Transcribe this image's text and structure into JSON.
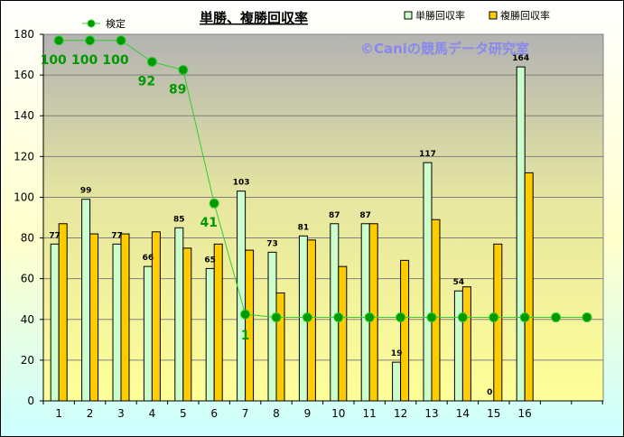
{
  "chart_data": {
    "type": "bar",
    "title": "単勝、複勝回収率",
    "watermark": "©Caniの競馬データ研究室",
    "categories": [
      "1",
      "2",
      "3",
      "4",
      "5",
      "6",
      "7",
      "8",
      "9",
      "10",
      "11",
      "12",
      "13",
      "14",
      "15",
      "16"
    ],
    "series": [
      {
        "name": "単勝回収率",
        "type": "bar",
        "color": "#ccffcc",
        "values": [
          77,
          99,
          77,
          66,
          85,
          65,
          103,
          73,
          81,
          87,
          87,
          19,
          117,
          54,
          0,
          164
        ],
        "labels": [
          "77",
          "99",
          "77",
          "66",
          "85",
          "65",
          "103",
          "73",
          "81",
          "87",
          "87",
          "19",
          "117",
          "54",
          "0",
          "164"
        ]
      },
      {
        "name": "複勝回収率",
        "type": "bar",
        "color": "#ffcc00",
        "values": [
          87,
          82,
          82,
          83,
          75,
          77,
          74,
          53,
          79,
          66,
          87,
          69,
          89,
          56,
          77,
          112
        ]
      },
      {
        "name": "検定",
        "type": "line",
        "color": "#33cc33",
        "x": [
          1,
          2,
          3,
          4,
          5,
          6,
          7,
          8,
          9,
          10,
          11,
          12,
          13,
          14,
          15,
          16,
          17,
          18
        ],
        "values": [
          177,
          177,
          177,
          166.5,
          162.5,
          97,
          42.5,
          41,
          41,
          41,
          41,
          41,
          41,
          41,
          41,
          41,
          41,
          41
        ],
        "labels": [
          "100",
          "100",
          "100",
          "92",
          "89",
          "41",
          "1",
          "",
          "",
          "",
          "",
          "",
          "",
          "",
          "",
          "",
          "",
          ""
        ]
      }
    ],
    "ylim": [
      0,
      180
    ],
    "yticks": [
      "0",
      "20",
      "40",
      "60",
      "80",
      "100",
      "120",
      "140",
      "160",
      "180"
    ],
    "grid": true,
    "legend": "top"
  },
  "colors": {
    "bar1_border": "#000000",
    "line_marker": "#009900",
    "label_green": "#009900"
  }
}
